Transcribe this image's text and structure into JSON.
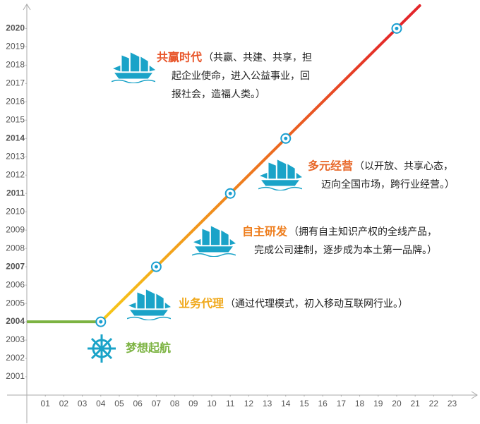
{
  "chart_data": {
    "type": "line",
    "xlim": [
      0,
      24.2
    ],
    "ylim": [
      2000,
      2021.4
    ],
    "xticks": [
      {
        "value": 1,
        "label": "01"
      },
      {
        "value": 2,
        "label": "02"
      },
      {
        "value": 3,
        "label": "03"
      },
      {
        "value": 4,
        "label": "04"
      },
      {
        "value": 5,
        "label": "05"
      },
      {
        "value": 6,
        "label": "06"
      },
      {
        "value": 7,
        "label": "07"
      },
      {
        "value": 8,
        "label": "08"
      },
      {
        "value": 9,
        "label": "09"
      },
      10,
      11,
      12,
      13,
      14,
      15,
      16,
      17,
      18,
      19,
      20,
      21,
      22,
      23
    ],
    "yticks": [
      2001,
      2002,
      2003,
      2004,
      2005,
      2006,
      2007,
      2008,
      2009,
      2010,
      2011,
      2012,
      2013,
      2014,
      2015,
      2016,
      2017,
      2018,
      2019,
      2020
    ],
    "highlight_yticks": [
      2004,
      2007,
      2011,
      2014,
      2020
    ],
    "highlight_color": "#1a9fd1",
    "series": [
      {
        "color": "#7cb342",
        "x": [
          0,
          4
        ],
        "values": [
          2004,
          2004
        ]
      },
      {
        "color": "#f39c12",
        "x": [
          4,
          7,
          11,
          14,
          20
        ],
        "values": [
          2004,
          2007,
          2011,
          2014,
          2020
        ],
        "markers": true
      }
    ],
    "annotations": [
      {
        "title": "共赢时代",
        "color": "#e8552a",
        "lines": [
          "（共赢、共建、共享，担",
          "起企业使命，进入公益事业，回",
          "报社会，造福人类。）"
        ]
      },
      {
        "title": "多元经营",
        "color": "#e8682a",
        "lines": [
          "（以开放、共享心态，",
          "迈向全国市场，跨行业经营。）"
        ]
      },
      {
        "title": "自主研发",
        "color": "#ee7d1c",
        "lines": [
          "（拥有自主知识产权的全线产品，",
          "完成公司建制，逐步成为本土第一品牌。）"
        ]
      },
      {
        "title": "业务代理",
        "color": "#f0a81a",
        "lines": [
          "（通过代理模式，初入移动互联网行业。）"
        ]
      },
      {
        "title": "梦想起航",
        "color": "#7cb342",
        "lines": []
      }
    ]
  }
}
